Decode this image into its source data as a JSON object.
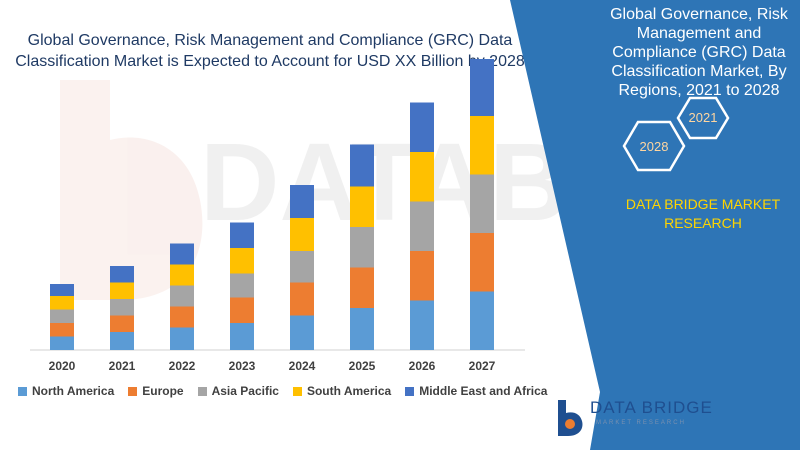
{
  "chart_data": {
    "type": "bar",
    "stacked": true,
    "title": "Global Governance, Risk Management and Compliance (GRC) Data Classification Market is Expected to Account for USD XX Billion by 2028",
    "categories": [
      "2020",
      "2021",
      "2022",
      "2023",
      "2024",
      "2025",
      "2026",
      "2027"
    ],
    "series": [
      {
        "name": "North America",
        "color": "#5b9bd5",
        "values": [
          9,
          12,
          15,
          18,
          23,
          28,
          33,
          39
        ]
      },
      {
        "name": "Europe",
        "color": "#ed7d31",
        "values": [
          9,
          11,
          14,
          17,
          22,
          27,
          33,
          39
        ]
      },
      {
        "name": "Asia Pacific",
        "color": "#a5a5a5",
        "values": [
          9,
          11,
          14,
          16,
          21,
          27,
          33,
          39
        ]
      },
      {
        "name": "South America",
        "color": "#ffc000",
        "values": [
          9,
          11,
          14,
          17,
          22,
          27,
          33,
          39
        ]
      },
      {
        "name": "Middle East and Africa",
        "color": "#4472c4",
        "values": [
          8,
          11,
          14,
          17,
          22,
          28,
          33,
          38
        ]
      }
    ],
    "ylim": [
      0,
      200
    ],
    "grid": false,
    "legend_position": "bottom"
  },
  "panel": {
    "title": "Global Governance, Risk Management and Compliance (GRC) Data Classification Market, By Regions, 2021 to 2028",
    "hex_labels": [
      "2021",
      "2028"
    ],
    "research_label": "DATA BRIDGE MARKET RESEARCH",
    "background_color": "#2e75b6",
    "accent_color": "#ffd500"
  },
  "watermark": {
    "text": "DATABRIDGE"
  },
  "logo": {
    "name": "DATA BRIDGE",
    "subtitle": "MARKET RESEARCH"
  }
}
